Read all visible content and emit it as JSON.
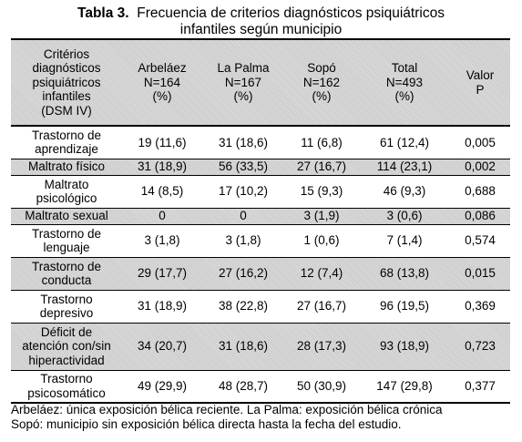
{
  "title": {
    "label": "Tabla 3.",
    "line1": "Frecuencia de criterios diagnósticos psiquiátricos",
    "line2": "infantiles según municipio"
  },
  "header": [
    [
      "Critérios",
      "diagnósticos",
      "psiquiátricos",
      "infantiles",
      "(DSM IV)"
    ],
    [
      "Arbeláez",
      "N=164",
      "(%)"
    ],
    [
      "La Palma",
      "N=167",
      "(%)"
    ],
    [
      "Sopó",
      "N=162",
      "(%)"
    ],
    [
      "Total",
      "N=493",
      "(%)"
    ],
    [
      "Valor",
      "P"
    ]
  ],
  "rows": [
    {
      "criterio": [
        "Trastorno de",
        "aprendizaje"
      ],
      "arbelaez": "19 (11,6)",
      "lapalma": "31 (18,6)",
      "sopo": "11 (6,8)",
      "total": "61 (12,4)",
      "p": "0,005"
    },
    {
      "criterio": [
        "Maltrato físico"
      ],
      "arbelaez": "31 (18,9)",
      "lapalma": "56 (33,5)",
      "sopo": "27 (16,7)",
      "total": "114 (23,1)",
      "p": "0,002"
    },
    {
      "criterio": [
        "Maltrato",
        "psicológico"
      ],
      "arbelaez": "14 (8,5)",
      "lapalma": "17 (10,2)",
      "sopo": "15 (9,3)",
      "total": "46 (9,3)",
      "p": "0,688"
    },
    {
      "criterio": [
        "Maltrato sexual"
      ],
      "arbelaez": "0",
      "lapalma": "0",
      "sopo": "3 (1,9)",
      "total": "3 (0,6)",
      "p": "0,086"
    },
    {
      "criterio": [
        "Trastorno de",
        "lenguaje"
      ],
      "arbelaez": "3 (1,8)",
      "lapalma": "3 (1,8)",
      "sopo": "1 (0,6)",
      "total": "7 (1,4)",
      "p": "0,574"
    },
    {
      "criterio": [
        "Trastorno de",
        "conducta"
      ],
      "arbelaez": "29 (17,7)",
      "lapalma": "27 (16,2)",
      "sopo": "12 (7,4)",
      "total": "68 (13,8)",
      "p": "0,015"
    },
    {
      "criterio": [
        "Trastorno",
        "depresivo"
      ],
      "arbelaez": "31 (18,9)",
      "lapalma": "38 (22,8)",
      "sopo": "27 (16,7)",
      "total": "96 (19,5)",
      "p": "0,369"
    },
    {
      "criterio": [
        "Déficit de",
        "atención con/sin",
        "hiperactividad"
      ],
      "arbelaez": "34 (20,7)",
      "lapalma": "31 (18,6)",
      "sopo": "28 (17,3)",
      "total": "93 (18,9)",
      "p": "0,723"
    },
    {
      "criterio": [
        "Trastorno",
        "psicosomático"
      ],
      "arbelaez": "49 (29,9)",
      "lapalma": "48 (28,7)",
      "sopo": "50 (30,9)",
      "total": "147 (29,8)",
      "p": "0,377"
    }
  ],
  "footnote": [
    "Arbeláez: única exposición bélica reciente. La Palma: exposición bélica crónica",
    "Sopó: municipio sin exposición bélica directa hasta la fecha del estudio."
  ]
}
